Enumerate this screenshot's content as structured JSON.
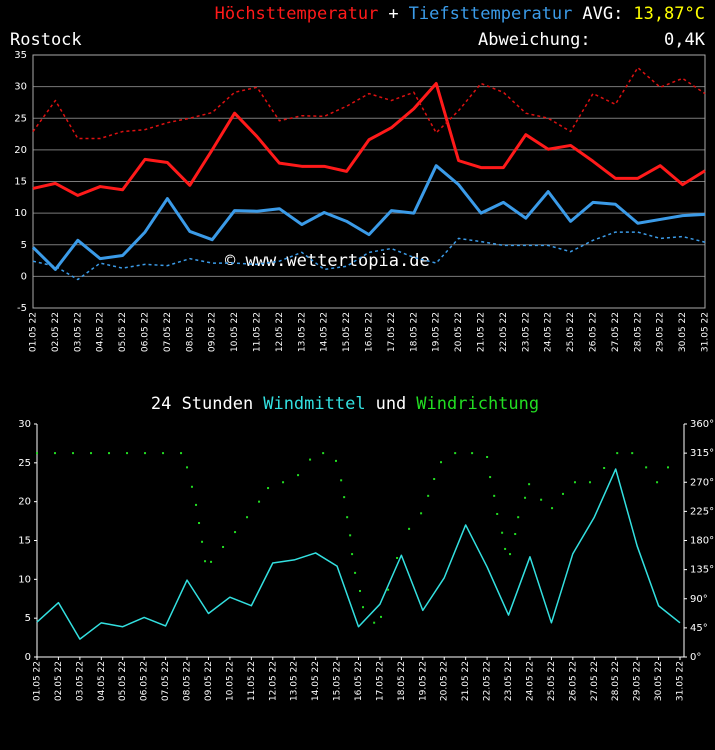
{
  "chart_data": [
    {
      "type": "line",
      "plus": "+",
      "avg_label": "AVG:",
      "avg_value": "13,87°C",
      "avg_color": "#ffff00",
      "location": "Rostock",
      "location_color": "#22dd22",
      "deviation_label": "Abweichung:",
      "deviation_value": "0,4K",
      "deviation_color": "#ff2222",
      "watermark": "© www.wettertopia.de",
      "categories": [
        "01.05 22",
        "02.05 22",
        "03.05 22",
        "04.05 22",
        "05.05 22",
        "06.05 22",
        "07.05 22",
        "08.05 22",
        "09.05 22",
        "10.05 22",
        "11.05 22",
        "12.05 22",
        "13.05 22",
        "14.05 22",
        "15.05 22",
        "16.05 22",
        "17.05 22",
        "18.05 22",
        "19.05 22",
        "20.05 22",
        "21.05 22",
        "22.05 22",
        "23.05 22",
        "24.05 22",
        "25.05 22",
        "26.05 22",
        "27.05 22",
        "28.05 22",
        "29.05 22",
        "30.05 22",
        "31.05 22"
      ],
      "series": [
        {
          "name": "Höchsttemperatur",
          "color": "#ff1a1a",
          "width": 3,
          "values": [
            13.9,
            14.7,
            12.8,
            14.2,
            13.7,
            18.5,
            18.0,
            14.4,
            20.0,
            25.8,
            22.1,
            17.9,
            17.4,
            17.4,
            16.6,
            21.6,
            23.5,
            26.5,
            30.5,
            18.3,
            17.2,
            17.2,
            22.4,
            20.1,
            20.7,
            18.2,
            15.5,
            15.5,
            17.5,
            14.5,
            16.7
          ]
        },
        {
          "color": "#dd1111",
          "width": 1.5,
          "dash": true,
          "values": [
            22.9,
            27.8,
            21.8,
            21.8,
            22.9,
            23.2,
            24.3,
            25.0,
            25.9,
            29.1,
            29.9,
            24.6,
            25.4,
            25.3,
            26.9,
            28.9,
            27.8,
            29.1,
            22.7,
            26.2,
            30.5,
            29.1,
            25.8,
            25.0,
            22.9,
            28.9,
            27.2,
            33.0,
            29.9,
            31.3,
            28.9
          ]
        },
        {
          "name": "Tiefsttemperatur",
          "color": "#3b9be8",
          "width": 3,
          "values": [
            4.6,
            1.1,
            5.7,
            2.8,
            3.3,
            7.0,
            12.3,
            7.1,
            5.8,
            10.4,
            10.3,
            10.7,
            8.2,
            10.1,
            8.7,
            6.6,
            10.4,
            10.0,
            17.5,
            14.5,
            10.0,
            11.7,
            9.2,
            13.4,
            8.7,
            11.7,
            11.4,
            8.4,
            9.0,
            9.6,
            9.8
          ]
        },
        {
          "color": "#3b9be8",
          "width": 1.5,
          "dash": true,
          "values": [
            2.4,
            1.6,
            -0.5,
            2.1,
            1.3,
            1.9,
            1.7,
            2.8,
            2.1,
            2.1,
            1.9,
            2.4,
            3.8,
            1.1,
            1.6,
            3.8,
            4.4,
            3.0,
            2.1,
            6.0,
            5.5,
            4.9,
            4.9,
            4.9,
            3.9,
            5.7,
            7.0,
            7.0,
            6.0,
            6.3,
            5.4
          ]
        }
      ],
      "ylim": [
        -5,
        35
      ],
      "yticks": [
        -5,
        0,
        5,
        10,
        15,
        20,
        25,
        30,
        35
      ],
      "grid": true,
      "ytick_color": "#dd2222"
    },
    {
      "type": "line",
      "title": "24 Stunden",
      "joiner": "und",
      "categories": [
        "01.05 22",
        "02.05 22",
        "03.05 22",
        "04.05 22",
        "05.05 22",
        "06.05 22",
        "07.05 22",
        "08.05 22",
        "09.05 22",
        "10.05 22",
        "11.05 22",
        "12.05 22",
        "13.05 22",
        "14.05 22",
        "15.05 22",
        "16.05 22",
        "17.05 22",
        "18.05 22",
        "19.05 22",
        "20.05 22",
        "21.05 22",
        "22.05 22",
        "23.05 22",
        "24.05 22",
        "25.05 22",
        "26.05 22",
        "27.05 22",
        "28.05 22",
        "29.05 22",
        "30.05 22",
        "31.05 22"
      ],
      "series": [
        {
          "name": "Windmittel",
          "color": "#33e0e0",
          "width": 1.5,
          "values": [
            4.5,
            7.0,
            2.3,
            4.4,
            3.9,
            5.1,
            4.0,
            9.9,
            5.6,
            7.7,
            6.6,
            12.1,
            12.5,
            13.4,
            11.7,
            3.9,
            6.8,
            13.1,
            6.0,
            10.2,
            17.0,
            11.6,
            5.4,
            12.9,
            4.4,
            13.3,
            18.0,
            24.2,
            14.3,
            6.6,
            4.4
          ]
        },
        {
          "name": "Windrichtung",
          "type": "scatter",
          "axis": "y2",
          "color": "#22dd22",
          "x": [
            1.0,
            1.84,
            2.68,
            3.52,
            4.36,
            5.2,
            6.04,
            6.88,
            7.72,
            8.0,
            8.23,
            8.42,
            8.56,
            8.7,
            8.84,
            9.12,
            9.68,
            10.24,
            10.8,
            11.36,
            11.78,
            12.48,
            13.18,
            13.74,
            14.35,
            14.95,
            15.19,
            15.33,
            15.47,
            15.61,
            15.7,
            15.84,
            16.07,
            16.21,
            16.73,
            17.05,
            17.38,
            17.8,
            18.36,
            18.92,
            19.25,
            19.53,
            19.85,
            20.51,
            21.3,
            22.0,
            22.14,
            22.33,
            22.47,
            22.7,
            22.84,
            23.07,
            23.31,
            23.45,
            23.77,
            23.96,
            24.52,
            25.03,
            25.54,
            26.1,
            26.8,
            27.46,
            28.07,
            28.77,
            29.42,
            29.93,
            30.44
          ],
          "values": [
            315,
            315,
            315,
            315,
            315,
            315,
            315,
            315,
            315,
            293,
            263,
            235,
            207,
            178,
            148,
            147,
            170,
            193,
            216,
            240,
            261,
            270,
            281,
            305,
            315,
            303,
            273,
            247,
            216,
            188,
            159,
            130,
            102,
            77,
            53,
            62,
            104,
            153,
            198,
            222,
            249,
            275,
            301,
            315,
            315,
            309,
            278,
            249,
            221,
            192,
            167,
            159,
            190,
            216,
            246,
            267,
            243,
            230,
            252,
            270,
            270,
            292,
            315,
            315,
            293,
            270,
            293
          ]
        }
      ],
      "xlim": [
        1,
        31
      ],
      "ylim": [
        0,
        30
      ],
      "yticks": [
        0,
        5,
        10,
        15,
        20,
        25,
        30
      ],
      "ytick_color": "#ffff00",
      "y2lim": [
        0,
        360
      ],
      "y2ticks": [
        {
          "value": 0,
          "label": "0°"
        },
        {
          "value": 45,
          "label": "45°"
        },
        {
          "value": 90,
          "label": "90°"
        },
        {
          "value": 135,
          "label": "135°"
        },
        {
          "value": 180,
          "label": "180°"
        },
        {
          "value": 225,
          "label": "225°"
        },
        {
          "value": 270,
          "label": "270°"
        },
        {
          "value": 315,
          "label": "315°"
        },
        {
          "value": 360,
          "label": "360°"
        }
      ],
      "y2tick_color": "#22dd22"
    }
  ]
}
